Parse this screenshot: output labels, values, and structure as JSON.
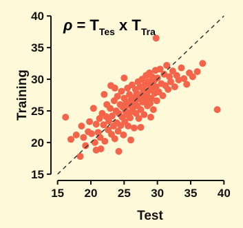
{
  "chart_data": {
    "type": "scatter",
    "title": {
      "rho": "ρ",
      "eq": " = T",
      "sub1": "Tes",
      "mid": " x T",
      "sub2": "Tra"
    },
    "xlabel": "Test",
    "ylabel": "Training",
    "xlim": [
      14,
      41
    ],
    "ylim": [
      14,
      41
    ],
    "x_ticks": [
      15,
      20,
      25,
      30,
      35,
      40
    ],
    "y_ticks": [
      15,
      20,
      25,
      30,
      35,
      40
    ],
    "grid": false,
    "reference_line": {
      "style": "dashed",
      "from": [
        15,
        15
      ],
      "to": [
        40,
        40
      ]
    },
    "point_color": "#f4644a",
    "points": [
      [
        29.8,
        36.5
      ],
      [
        36.8,
        32.5
      ],
      [
        39.0,
        25.2
      ],
      [
        16.2,
        24.0
      ],
      [
        17.0,
        20.5
      ],
      [
        17.8,
        21.2
      ],
      [
        18.4,
        17.8
      ],
      [
        18.6,
        22.6
      ],
      [
        18.9,
        20.8
      ],
      [
        19.2,
        19.5
      ],
      [
        19.6,
        21.7
      ],
      [
        19.8,
        23.3
      ],
      [
        20.1,
        21.4
      ],
      [
        20.6,
        20.0
      ],
      [
        20.8,
        18.8
      ],
      [
        20.8,
        22.9
      ],
      [
        21.1,
        21.6
      ],
      [
        21.3,
        23.8
      ],
      [
        21.4,
        20.8
      ],
      [
        21.7,
        24.6
      ],
      [
        21.9,
        22.8
      ],
      [
        22.1,
        20.2
      ],
      [
        22.3,
        24.1
      ],
      [
        22.4,
        26.0
      ],
      [
        22.6,
        22.0
      ],
      [
        22.7,
        23.4
      ],
      [
        22.9,
        25.4
      ],
      [
        23.1,
        21.3
      ],
      [
        23.2,
        24.2
      ],
      [
        23.4,
        22.6
      ],
      [
        23.5,
        26.6
      ],
      [
        23.6,
        20.6
      ],
      [
        23.8,
        25.0
      ],
      [
        23.9,
        23.1
      ],
      [
        24.0,
        27.3
      ],
      [
        24.1,
        21.8
      ],
      [
        24.2,
        24.6
      ],
      [
        24.4,
        26.0
      ],
      [
        24.5,
        22.7
      ],
      [
        24.6,
        28.1
      ],
      [
        24.7,
        24.0
      ],
      [
        24.8,
        25.6
      ],
      [
        24.9,
        21.2
      ],
      [
        25.0,
        27.0
      ],
      [
        25.1,
        23.3
      ],
      [
        25.2,
        25.0
      ],
      [
        25.3,
        26.3
      ],
      [
        25.4,
        24.4
      ],
      [
        25.5,
        28.6
      ],
      [
        25.6,
        22.6
      ],
      [
        25.7,
        25.9
      ],
      [
        25.8,
        27.6
      ],
      [
        25.9,
        23.9
      ],
      [
        26.0,
        26.7
      ],
      [
        26.1,
        24.9
      ],
      [
        26.2,
        29.1
      ],
      [
        26.3,
        25.4
      ],
      [
        26.4,
        27.1
      ],
      [
        26.5,
        22.3
      ],
      [
        26.6,
        26.2
      ],
      [
        26.7,
        28.4
      ],
      [
        26.8,
        24.6
      ],
      [
        26.9,
        27.8
      ],
      [
        27.0,
        25.8
      ],
      [
        27.1,
        29.6
      ],
      [
        27.2,
        23.8
      ],
      [
        27.3,
        26.9
      ],
      [
        27.4,
        28.8
      ],
      [
        27.5,
        25.2
      ],
      [
        27.6,
        27.4
      ],
      [
        27.7,
        30.0
      ],
      [
        27.8,
        26.4
      ],
      [
        27.9,
        28.2
      ],
      [
        28.0,
        24.4
      ],
      [
        28.1,
        29.1
      ],
      [
        28.2,
        26.8
      ],
      [
        28.3,
        30.6
      ],
      [
        28.4,
        27.6
      ],
      [
        28.5,
        25.8
      ],
      [
        28.6,
        29.6
      ],
      [
        28.7,
        28.2
      ],
      [
        28.8,
        31.0
      ],
      [
        28.9,
        26.2
      ],
      [
        29.0,
        29.0
      ],
      [
        29.1,
        27.0
      ],
      [
        29.2,
        30.4
      ],
      [
        29.3,
        28.6
      ],
      [
        29.4,
        25.2
      ],
      [
        29.5,
        29.8
      ],
      [
        29.6,
        27.8
      ],
      [
        29.7,
        31.4
      ],
      [
        29.8,
        28.8
      ],
      [
        29.9,
        26.6
      ],
      [
        30.0,
        30.2
      ],
      [
        30.2,
        28.0
      ],
      [
        30.4,
        31.6
      ],
      [
        30.6,
        29.3
      ],
      [
        30.8,
        27.4
      ],
      [
        31.0,
        30.8
      ],
      [
        31.2,
        29.0
      ],
      [
        31.4,
        32.2
      ],
      [
        31.6,
        28.4
      ],
      [
        31.8,
        30.4
      ],
      [
        32.0,
        29.6
      ],
      [
        32.3,
        31.3
      ],
      [
        32.6,
        28.8
      ],
      [
        32.9,
        30.6
      ],
      [
        33.2,
        29.9
      ],
      [
        33.6,
        31.8
      ],
      [
        34.0,
        30.1
      ],
      [
        34.4,
        29.2
      ],
      [
        34.8,
        31.0
      ],
      [
        35.3,
        30.4
      ],
      [
        36.0,
        31.2
      ],
      [
        24.2,
        18.6
      ],
      [
        26.0,
        20.4
      ],
      [
        22.0,
        27.6
      ],
      [
        20.4,
        25.4
      ],
      [
        23.0,
        29.0
      ],
      [
        27.5,
        22.4
      ],
      [
        25.0,
        30.2
      ],
      [
        21.5,
        19.0
      ],
      [
        29.0,
        24.0
      ],
      [
        23.6,
        28.6
      ]
    ]
  }
}
